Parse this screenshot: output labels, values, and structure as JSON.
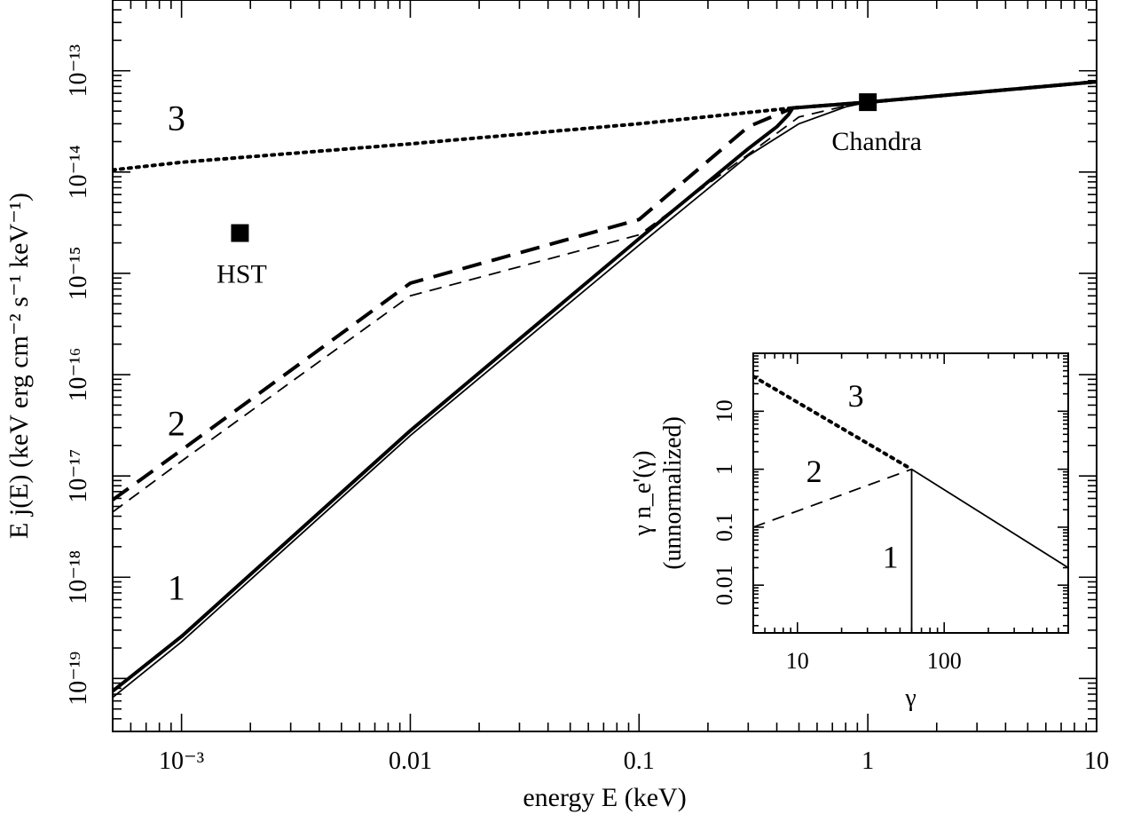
{
  "chart_data": [
    {
      "type": "line",
      "title": "",
      "xlabel": "energy E (keV)",
      "ylabel": "E j(E) (keV erg cm⁻² s⁻¹ keV⁻¹)",
      "xscale": "log",
      "yscale": "log",
      "xlim": [
        0.0005,
        10
      ],
      "ylim": [
        3e-20,
        5e-13
      ],
      "x_ticks": [
        {
          "value": 0.001,
          "label": "10⁻³"
        },
        {
          "value": 0.01,
          "label": "0.01"
        },
        {
          "value": 0.1,
          "label": "0.1"
        },
        {
          "value": 1,
          "label": "1"
        },
        {
          "value": 10,
          "label": "10"
        }
      ],
      "y_ticks": [
        {
          "value": 1e-19,
          "label": "10⁻¹⁹"
        },
        {
          "value": 1e-18,
          "label": "10⁻¹⁸"
        },
        {
          "value": 1e-17,
          "label": "10⁻¹⁷"
        },
        {
          "value": 1e-16,
          "label": "10⁻¹⁶"
        },
        {
          "value": 1e-15,
          "label": "10⁻¹⁵"
        },
        {
          "value": 1e-14,
          "label": "10⁻¹⁴"
        },
        {
          "value": 1e-13,
          "label": "10⁻¹³"
        }
      ],
      "series": [
        {
          "label": "1",
          "style": "solid-thin",
          "x": [
            0.0005,
            0.001,
            0.01,
            0.1,
            0.3,
            0.5,
            0.8,
            1,
            10
          ],
          "y": [
            6.5e-20,
            2.3e-19,
            2.5e-17,
            1.9e-15,
            1.45e-14,
            3e-14,
            4.4e-14,
            4.9e-14,
            7.8e-14
          ]
        },
        {
          "label": "1",
          "style": "solid-thick",
          "x": [
            0.0005,
            0.001,
            0.01,
            0.1,
            0.3,
            0.4,
            0.45,
            0.47,
            1,
            10
          ],
          "y": [
            7.5e-20,
            2.6e-19,
            2.8e-17,
            2.2e-15,
            1.7e-14,
            2.8e-14,
            3.7e-14,
            4.3e-14,
            4.9e-14,
            7.8e-14
          ]
        },
        {
          "label": "2",
          "style": "dashed-thin",
          "x": [
            0.0005,
            0.001,
            0.01,
            0.1,
            0.5,
            0.8,
            1,
            10
          ],
          "y": [
            4.4e-18,
            1.4e-17,
            6e-16,
            2.4e-15,
            3.5e-14,
            4.5e-14,
            4.9e-14,
            7.8e-14
          ]
        },
        {
          "label": "2",
          "style": "dashed-thick",
          "x": [
            0.0005,
            0.001,
            0.01,
            0.1,
            0.3,
            0.47,
            1,
            10
          ],
          "y": [
            5.8e-18,
            1.8e-17,
            8e-16,
            3.4e-15,
            2.8e-14,
            4.3e-14,
            4.9e-14,
            7.8e-14
          ]
        },
        {
          "label": "3",
          "style": "dotted",
          "x": [
            0.0005,
            0.001,
            0.01,
            0.1,
            0.47,
            1,
            10
          ],
          "y": [
            1.05e-14,
            1.25e-14,
            1.9e-14,
            3e-14,
            4.3e-14,
            4.9e-14,
            7.8e-14
          ]
        }
      ],
      "points": [
        {
          "name": "HST",
          "x": 0.0018,
          "y": 2.5e-15,
          "marker": "square"
        },
        {
          "name": "Chandra",
          "x": 1,
          "y": 4.9e-14,
          "marker": "square"
        }
      ],
      "curve_labels": [
        {
          "text": "3",
          "x": 0.00095,
          "y": 2.6e-14
        },
        {
          "text": "2",
          "x": 0.00095,
          "y": 2.5e-17
        },
        {
          "text": "1",
          "x": 0.00095,
          "y": 6e-19
        }
      ],
      "grid": false,
      "legend": "none"
    },
    {
      "type": "line",
      "title": "",
      "xlabel": "γ",
      "ylabel": "γ n_e'(γ)",
      "ylabel2": "(unnormalized)",
      "xscale": "log",
      "yscale": "log",
      "xlim": [
        5,
        700
      ],
      "ylim": [
        0.0015,
        100
      ],
      "x_ticks": [
        {
          "value": 10,
          "label": "10"
        },
        {
          "value": 100,
          "label": "100"
        }
      ],
      "y_ticks": [
        {
          "value": 0.01,
          "label": "0.01"
        },
        {
          "value": 0.1,
          "label": "0.1"
        },
        {
          "value": 1,
          "label": "1"
        },
        {
          "value": 10,
          "label": "10"
        }
      ],
      "series": [
        {
          "label": "1",
          "style": "solid",
          "x": [
            60,
            60,
            700
          ],
          "y": [
            0.0015,
            1,
            0.02
          ]
        },
        {
          "label": "2",
          "style": "dashed",
          "x": [
            5,
            60
          ],
          "y": [
            0.1,
            1
          ]
        },
        {
          "label": "3",
          "style": "dotted",
          "x": [
            5,
            60
          ],
          "y": [
            40,
            1
          ]
        }
      ],
      "curve_labels": [
        {
          "text": "3",
          "x": 25,
          "y": 12
        },
        {
          "text": "2",
          "x": 13,
          "y": 0.6
        },
        {
          "text": "1",
          "x": 43,
          "y": 0.02
        }
      ],
      "grid": false,
      "legend": "none"
    }
  ]
}
